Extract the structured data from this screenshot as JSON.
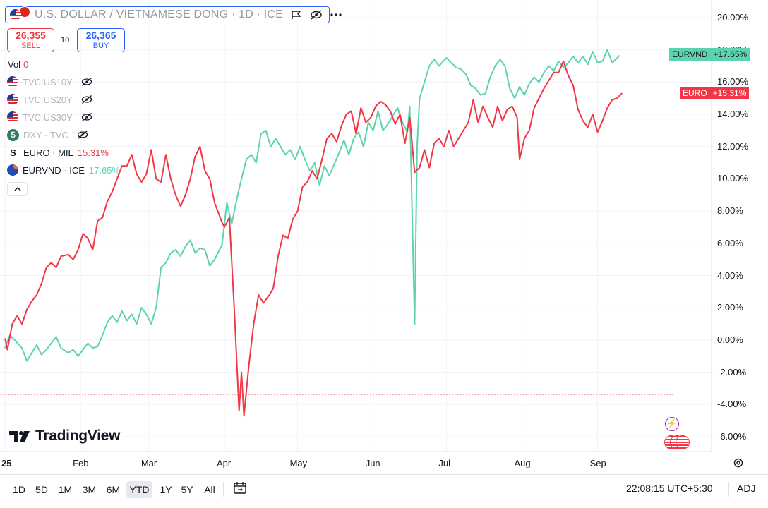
{
  "header": {
    "title": "U.S. DOLLAR / VIETNAMESE DONG · 1D · ICE",
    "sell_price": "26,355",
    "sell_label": "SELL",
    "spread": "10",
    "buy_price": "26,365",
    "buy_label": "BUY",
    "vol_label": "Vol",
    "vol_value": "0"
  },
  "indicators": [
    {
      "label": "TVC:US10Y",
      "value": "",
      "icon": "us-flag-icon"
    },
    {
      "label": "TVC:US20Y",
      "value": "",
      "icon": "us-flag-icon"
    },
    {
      "label": "TVC:US30Y",
      "value": "",
      "icon": "us-flag-icon"
    },
    {
      "label": "DXY · TVC",
      "value": "",
      "icon": "dollar-icon"
    },
    {
      "label": "EURO · MIL",
      "value": "15.31%",
      "icon": "s-icon",
      "color": "#f23645"
    },
    {
      "label": "EURVND · ICE",
      "value": "17.65%",
      "icon": "globe-icon",
      "color": "#5bd4ad"
    }
  ],
  "chart_data": {
    "type": "line",
    "title": "U.S. DOLLAR / VIETNAMESE DONG · 1D · ICE",
    "x_label": "",
    "y_label": "",
    "x_ticks": [
      "25",
      "Feb",
      "Mar",
      "Apr",
      "May",
      "Jun",
      "Jul",
      "Aug",
      "Sep"
    ],
    "y_ticks": [
      "20.00%",
      "18.00%",
      "16.00%",
      "14.00%",
      "12.00%",
      "10.00%",
      "8.00%",
      "6.00%",
      "4.00%",
      "2.00%",
      "0.00%",
      "-2.00%",
      "-4.00%",
      "-6.00%"
    ],
    "y_range": [
      -6.8,
      20.5
    ],
    "x_range": [
      "2025-01-01",
      "2025-09-15"
    ],
    "series": [
      {
        "name": "EURVND",
        "color": "#5bd4ad",
        "last_value": "+17.65%",
        "points": [
          [
            "2025-01-01",
            -0.5
          ],
          [
            "2025-01-03",
            0.3
          ],
          [
            "2025-01-05",
            0.0
          ],
          [
            "2025-01-08",
            -0.5
          ],
          [
            "2025-01-10",
            -1.3
          ],
          [
            "2025-01-12",
            -0.8
          ],
          [
            "2025-01-14",
            -0.3
          ],
          [
            "2025-01-16",
            -0.9
          ],
          [
            "2025-01-18",
            -0.6
          ],
          [
            "2025-01-20",
            -0.2
          ],
          [
            "2025-01-22",
            0.2
          ],
          [
            "2025-01-24",
            -0.5
          ],
          [
            "2025-01-27",
            -0.8
          ],
          [
            "2025-01-29",
            -0.6
          ],
          [
            "2025-01-31",
            -1.0
          ],
          [
            "2025-02-02",
            -0.6
          ],
          [
            "2025-02-04",
            -0.2
          ],
          [
            "2025-02-06",
            -0.5
          ],
          [
            "2025-02-08",
            -0.4
          ],
          [
            "2025-02-10",
            0.3
          ],
          [
            "2025-02-12",
            1.1
          ],
          [
            "2025-02-14",
            1.5
          ],
          [
            "2025-02-16",
            1.1
          ],
          [
            "2025-02-18",
            1.8
          ],
          [
            "2025-02-20",
            1.2
          ],
          [
            "2025-02-22",
            1.6
          ],
          [
            "2025-02-24",
            1.0
          ],
          [
            "2025-02-26",
            2.0
          ],
          [
            "2025-02-28",
            1.6
          ],
          [
            "2025-03-02",
            1.0
          ],
          [
            "2025-03-04",
            2.0
          ],
          [
            "2025-03-06",
            4.5
          ],
          [
            "2025-03-08",
            4.8
          ],
          [
            "2025-03-10",
            5.4
          ],
          [
            "2025-03-12",
            5.6
          ],
          [
            "2025-03-14",
            5.2
          ],
          [
            "2025-03-16",
            5.8
          ],
          [
            "2025-03-18",
            6.2
          ],
          [
            "2025-03-20",
            5.4
          ],
          [
            "2025-03-22",
            5.7
          ],
          [
            "2025-03-24",
            5.6
          ],
          [
            "2025-03-26",
            4.6
          ],
          [
            "2025-03-28",
            5.0
          ],
          [
            "2025-03-31",
            5.9
          ],
          [
            "2025-04-02",
            8.5
          ],
          [
            "2025-04-04",
            7.2
          ],
          [
            "2025-04-06",
            8.7
          ],
          [
            "2025-04-08",
            10.0
          ],
          [
            "2025-04-10",
            11.2
          ],
          [
            "2025-04-12",
            11.5
          ],
          [
            "2025-04-14",
            11.0
          ],
          [
            "2025-04-16",
            12.8
          ],
          [
            "2025-04-18",
            13.0
          ],
          [
            "2025-04-20",
            12.0
          ],
          [
            "2025-04-22",
            12.5
          ],
          [
            "2025-04-24",
            12.0
          ],
          [
            "2025-04-26",
            11.5
          ],
          [
            "2025-04-28",
            11.8
          ],
          [
            "2025-04-30",
            11.2
          ],
          [
            "2025-05-02",
            12.0
          ],
          [
            "2025-05-04",
            11.2
          ],
          [
            "2025-05-06",
            10.5
          ],
          [
            "2025-05-08",
            11.0
          ],
          [
            "2025-05-10",
            9.6
          ],
          [
            "2025-05-12",
            10.8
          ],
          [
            "2025-05-14",
            10.2
          ],
          [
            "2025-05-16",
            10.9
          ],
          [
            "2025-05-18",
            11.6
          ],
          [
            "2025-05-20",
            12.4
          ],
          [
            "2025-05-22",
            11.5
          ],
          [
            "2025-05-24",
            12.5
          ],
          [
            "2025-05-26",
            12.9
          ],
          [
            "2025-05-28",
            12.0
          ],
          [
            "2025-05-30",
            13.5
          ],
          [
            "2025-06-01",
            13.0
          ],
          [
            "2025-06-03",
            14.2
          ],
          [
            "2025-06-05",
            13.0
          ],
          [
            "2025-06-07",
            13.4
          ],
          [
            "2025-06-09",
            13.9
          ],
          [
            "2025-06-11",
            14.4
          ],
          [
            "2025-06-13",
            13.5
          ],
          [
            "2025-06-15",
            12.9
          ],
          [
            "2025-06-16",
            14.5
          ],
          [
            "2025-06-18",
            1.0
          ],
          [
            "2025-06-19",
            12.0
          ],
          [
            "2025-06-20",
            15.0
          ],
          [
            "2025-06-22",
            16.0
          ],
          [
            "2025-06-24",
            17.0
          ],
          [
            "2025-06-26",
            17.4
          ],
          [
            "2025-06-28",
            17.0
          ],
          [
            "2025-07-01",
            17.5
          ],
          [
            "2025-07-03",
            17.2
          ],
          [
            "2025-07-05",
            16.9
          ],
          [
            "2025-07-07",
            16.8
          ],
          [
            "2025-07-09",
            16.5
          ],
          [
            "2025-07-11",
            15.8
          ],
          [
            "2025-07-13",
            15.6
          ],
          [
            "2025-07-15",
            15.2
          ],
          [
            "2025-07-17",
            15.3
          ],
          [
            "2025-07-19",
            16.3
          ],
          [
            "2025-07-21",
            17.0
          ],
          [
            "2025-07-23",
            17.4
          ],
          [
            "2025-07-25",
            17.0
          ],
          [
            "2025-07-27",
            15.6
          ],
          [
            "2025-07-29",
            15.0
          ],
          [
            "2025-07-31",
            15.7
          ],
          [
            "2025-08-02",
            15.2
          ],
          [
            "2025-08-04",
            15.9
          ],
          [
            "2025-08-06",
            16.3
          ],
          [
            "2025-08-08",
            16.0
          ],
          [
            "2025-08-10",
            16.6
          ],
          [
            "2025-08-12",
            17.0
          ],
          [
            "2025-08-14",
            16.7
          ],
          [
            "2025-08-16",
            17.3
          ],
          [
            "2025-08-18",
            16.9
          ],
          [
            "2025-08-20",
            17.2
          ],
          [
            "2025-08-22",
            17.6
          ],
          [
            "2025-08-24",
            17.2
          ],
          [
            "2025-08-26",
            17.6
          ],
          [
            "2025-08-28",
            17.1
          ],
          [
            "2025-08-30",
            17.9
          ],
          [
            "2025-09-01",
            17.2
          ],
          [
            "2025-09-03",
            17.3
          ],
          [
            "2025-09-05",
            18.0
          ],
          [
            "2025-09-07",
            17.2
          ],
          [
            "2025-09-10",
            17.65
          ]
        ]
      },
      {
        "name": "EURO",
        "color": "#f23645",
        "last_value": "+15.31%",
        "points": [
          [
            "2025-01-01",
            0.1
          ],
          [
            "2025-01-02",
            -0.6
          ],
          [
            "2025-01-04",
            1.0
          ],
          [
            "2025-01-06",
            1.5
          ],
          [
            "2025-01-08",
            1.0
          ],
          [
            "2025-01-10",
            1.9
          ],
          [
            "2025-01-12",
            2.4
          ],
          [
            "2025-01-14",
            2.8
          ],
          [
            "2025-01-16",
            3.5
          ],
          [
            "2025-01-18",
            4.5
          ],
          [
            "2025-01-20",
            4.8
          ],
          [
            "2025-01-22",
            4.5
          ],
          [
            "2025-01-24",
            5.2
          ],
          [
            "2025-01-27",
            5.3
          ],
          [
            "2025-01-29",
            5.0
          ],
          [
            "2025-01-31",
            5.6
          ],
          [
            "2025-02-02",
            6.6
          ],
          [
            "2025-02-04",
            6.3
          ],
          [
            "2025-02-06",
            5.6
          ],
          [
            "2025-02-08",
            7.4
          ],
          [
            "2025-02-10",
            7.6
          ],
          [
            "2025-02-12",
            8.6
          ],
          [
            "2025-02-14",
            9.2
          ],
          [
            "2025-02-16",
            10.0
          ],
          [
            "2025-02-18",
            10.8
          ],
          [
            "2025-02-20",
            10.8
          ],
          [
            "2025-02-22",
            11.5
          ],
          [
            "2025-02-24",
            10.3
          ],
          [
            "2025-02-26",
            9.8
          ],
          [
            "2025-02-28",
            10.3
          ],
          [
            "2025-03-02",
            11.8
          ],
          [
            "2025-03-04",
            10.0
          ],
          [
            "2025-03-06",
            9.8
          ],
          [
            "2025-03-08",
            11.5
          ],
          [
            "2025-03-10",
            10.0
          ],
          [
            "2025-03-12",
            9.0
          ],
          [
            "2025-03-14",
            8.3
          ],
          [
            "2025-03-16",
            9.0
          ],
          [
            "2025-03-18",
            10.0
          ],
          [
            "2025-03-20",
            11.4
          ],
          [
            "2025-03-22",
            12.0
          ],
          [
            "2025-03-24",
            10.5
          ],
          [
            "2025-03-26",
            10.0
          ],
          [
            "2025-03-28",
            8.5
          ],
          [
            "2025-03-31",
            7.3
          ],
          [
            "2025-04-01",
            7.0
          ],
          [
            "2025-04-03",
            7.6
          ],
          [
            "2025-04-05",
            2.0
          ],
          [
            "2025-04-07",
            -4.4
          ],
          [
            "2025-04-08",
            -2.0
          ],
          [
            "2025-04-09",
            -4.7
          ],
          [
            "2025-04-11",
            -1.6
          ],
          [
            "2025-04-13",
            1.0
          ],
          [
            "2025-04-15",
            2.8
          ],
          [
            "2025-04-17",
            2.3
          ],
          [
            "2025-04-19",
            2.7
          ],
          [
            "2025-04-21",
            3.2
          ],
          [
            "2025-04-23",
            5.2
          ],
          [
            "2025-04-25",
            6.5
          ],
          [
            "2025-04-27",
            6.3
          ],
          [
            "2025-04-29",
            7.5
          ],
          [
            "2025-05-01",
            8.0
          ],
          [
            "2025-05-03",
            9.5
          ],
          [
            "2025-05-05",
            9.8
          ],
          [
            "2025-05-07",
            10.5
          ],
          [
            "2025-05-09",
            10.0
          ],
          [
            "2025-05-11",
            11.2
          ],
          [
            "2025-05-13",
            12.5
          ],
          [
            "2025-05-15",
            12.8
          ],
          [
            "2025-05-17",
            12.3
          ],
          [
            "2025-05-19",
            13.3
          ],
          [
            "2025-05-21",
            14.0
          ],
          [
            "2025-05-23",
            14.2
          ],
          [
            "2025-05-25",
            12.8
          ],
          [
            "2025-05-27",
            14.4
          ],
          [
            "2025-05-29",
            13.5
          ],
          [
            "2025-05-31",
            13.8
          ],
          [
            "2025-06-02",
            14.5
          ],
          [
            "2025-06-04",
            14.8
          ],
          [
            "2025-06-06",
            14.6
          ],
          [
            "2025-06-08",
            14.2
          ],
          [
            "2025-06-10",
            13.4
          ],
          [
            "2025-06-12",
            14.0
          ],
          [
            "2025-06-14",
            12.2
          ],
          [
            "2025-06-16",
            13.8
          ],
          [
            "2025-06-18",
            10.4
          ],
          [
            "2025-06-20",
            10.7
          ],
          [
            "2025-06-22",
            11.8
          ],
          [
            "2025-06-24",
            10.7
          ],
          [
            "2025-06-26",
            12.2
          ],
          [
            "2025-06-28",
            12.5
          ],
          [
            "2025-06-30",
            12.0
          ],
          [
            "2025-07-02",
            13.0
          ],
          [
            "2025-07-04",
            12.0
          ],
          [
            "2025-07-06",
            12.5
          ],
          [
            "2025-07-08",
            13.0
          ],
          [
            "2025-07-10",
            13.5
          ],
          [
            "2025-07-12",
            14.9
          ],
          [
            "2025-07-14",
            13.5
          ],
          [
            "2025-07-16",
            14.5
          ],
          [
            "2025-07-18",
            13.8
          ],
          [
            "2025-07-20",
            13.2
          ],
          [
            "2025-07-22",
            14.5
          ],
          [
            "2025-07-24",
            13.6
          ],
          [
            "2025-07-26",
            14.3
          ],
          [
            "2025-07-28",
            14.5
          ],
          [
            "2025-07-30",
            13.8
          ],
          [
            "2025-07-31",
            11.2
          ],
          [
            "2025-08-02",
            12.5
          ],
          [
            "2025-08-04",
            13.0
          ],
          [
            "2025-08-06",
            14.4
          ],
          [
            "2025-08-08",
            15.0
          ],
          [
            "2025-08-10",
            15.6
          ],
          [
            "2025-08-12",
            16.1
          ],
          [
            "2025-08-14",
            16.6
          ],
          [
            "2025-08-16",
            16.6
          ],
          [
            "2025-08-18",
            17.3
          ],
          [
            "2025-08-20",
            16.4
          ],
          [
            "2025-08-22",
            15.8
          ],
          [
            "2025-08-24",
            14.3
          ],
          [
            "2025-08-26",
            13.6
          ],
          [
            "2025-08-28",
            13.2
          ],
          [
            "2025-08-30",
            14.0
          ],
          [
            "2025-09-01",
            12.9
          ],
          [
            "2025-09-03",
            13.6
          ],
          [
            "2025-09-05",
            14.4
          ],
          [
            "2025-09-07",
            14.9
          ],
          [
            "2025-09-09",
            15.0
          ],
          [
            "2025-09-11",
            15.31
          ]
        ]
      }
    ],
    "reference_line": {
      "value": -3.4,
      "style": "dotted"
    }
  },
  "time_ranges": [
    "1D",
    "5D",
    "1M",
    "3M",
    "6M",
    "YTD",
    "1Y",
    "5Y",
    "All"
  ],
  "active_range": "YTD",
  "footer": {
    "clock": "22:08:15 UTC+5:30",
    "adj": "ADJ",
    "logo": "TradingView"
  },
  "colors": {
    "teal": "#5bd4ad",
    "red": "#f23645",
    "blue": "#2962ff",
    "grid": "#f0f3fa"
  }
}
